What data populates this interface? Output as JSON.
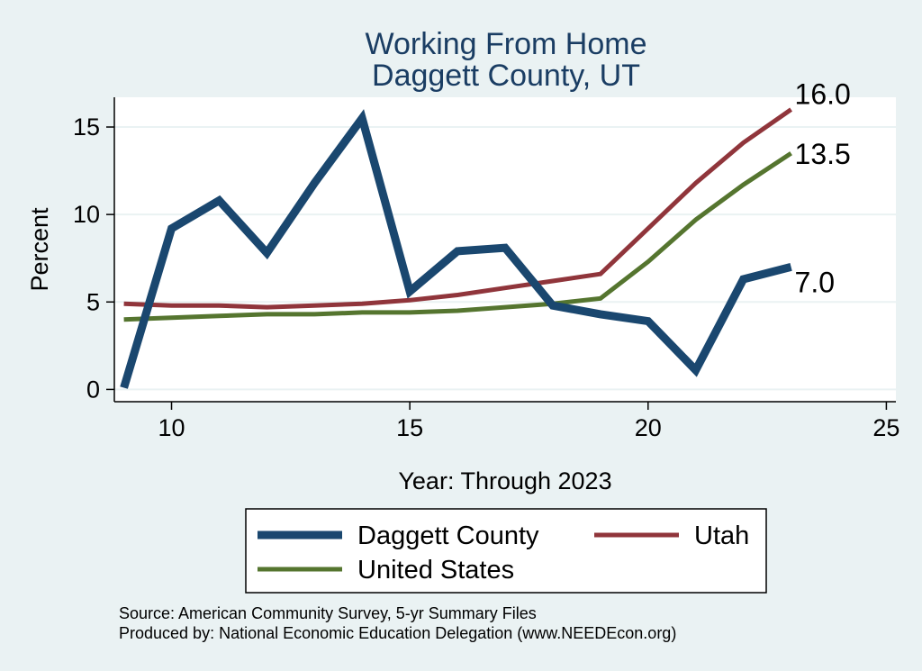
{
  "colors": {
    "background": "#eaf2f3",
    "plot_background": "#ffffff",
    "gridline": "#eaf2f3",
    "title": "#1a3d63"
  },
  "chart_data": {
    "type": "line",
    "title": "Working From Home",
    "subtitle": "Daggett County, UT",
    "xlabel": "Year: Through 2023",
    "ylabel": "Percent",
    "xlim": [
      8.8,
      25.2
    ],
    "ylim": [
      -0.7,
      16.7
    ],
    "x_ticks": [
      10,
      15,
      20,
      25
    ],
    "y_ticks": [
      0,
      5,
      10,
      15
    ],
    "grid": true,
    "legend_position": "bottom",
    "x": [
      9,
      10,
      11,
      12,
      13,
      14,
      15,
      16,
      17,
      18,
      19,
      20,
      21,
      22,
      23
    ],
    "series": [
      {
        "name": "Daggett County",
        "color": "#1a476f",
        "width": 9,
        "values": [
          0.1,
          9.2,
          10.8,
          7.8,
          11.8,
          15.5,
          5.6,
          7.9,
          8.1,
          4.8,
          4.3,
          3.9,
          1.1,
          6.3,
          7.0
        ],
        "end_label": "7.0"
      },
      {
        "name": "Utah",
        "color": "#90353b",
        "width": 5,
        "values": [
          4.9,
          4.8,
          4.8,
          4.7,
          4.8,
          4.9,
          5.1,
          5.4,
          5.8,
          6.2,
          6.6,
          9.2,
          11.8,
          14.1,
          16.0
        ],
        "end_label": "16.0"
      },
      {
        "name": "United States",
        "color": "#55752f",
        "width": 5,
        "values": [
          4.0,
          4.1,
          4.2,
          4.3,
          4.3,
          4.4,
          4.4,
          4.5,
          4.7,
          4.9,
          5.2,
          7.3,
          9.7,
          11.7,
          13.5
        ],
        "end_label": "13.5"
      }
    ]
  },
  "source": {
    "line1": "Source: American Community Survey, 5-yr Summary Files",
    "line2": "Produced by: National Economic Education Delegation (www.NEEDEcon.org)"
  }
}
